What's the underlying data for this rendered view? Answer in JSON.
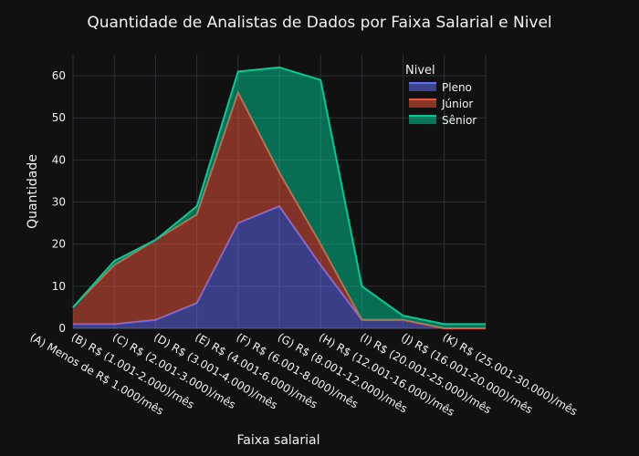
{
  "chart_data": {
    "type": "area",
    "title": "Quantidade de Analistas de Dados por Faixa Salarial e Nivel",
    "xlabel": "Faixa salarial",
    "ylabel": "Quantidade",
    "ylim": [
      0,
      65
    ],
    "yticks": [
      0,
      10,
      20,
      30,
      40,
      50,
      60
    ],
    "grid": true,
    "stacked": true,
    "legend": {
      "title": "Nivel",
      "position": "top-right"
    },
    "categories": [
      "(A) Menos de R$ 1.000/mês",
      "(B) R$ (1.001-2.000)/mês",
      "(C) R$ (2.001-3.000)/mês",
      "(D) R$ (3.001-4.000)/mês",
      "(E) R$ (4.001-6.000)/mês",
      "(F) R$ (6.001-8.000)/mês",
      "(G) R$ (8.001-12.000)/mês",
      "(H) R$ (12.001-16.000)/mês",
      "(I) R$ (20.001-25.000)/mês",
      "(J) R$ (16.001-20.000)/mês",
      "(K) R$ (25.001-30.000)/mês"
    ],
    "series": [
      {
        "name": "Pleno",
        "color": "#636efa",
        "values": [
          1,
          1,
          2,
          6,
          25,
          29,
          15,
          2,
          2,
          0,
          0
        ]
      },
      {
        "name": "Júnior",
        "color": "#ef553b",
        "values": [
          4,
          14,
          19,
          21,
          31,
          8,
          5,
          0,
          0,
          0,
          0
        ]
      },
      {
        "name": "Sênior",
        "color": "#00cc96",
        "values": [
          0,
          1,
          0,
          2,
          5,
          25,
          39,
          8,
          1,
          1,
          1
        ]
      }
    ]
  }
}
